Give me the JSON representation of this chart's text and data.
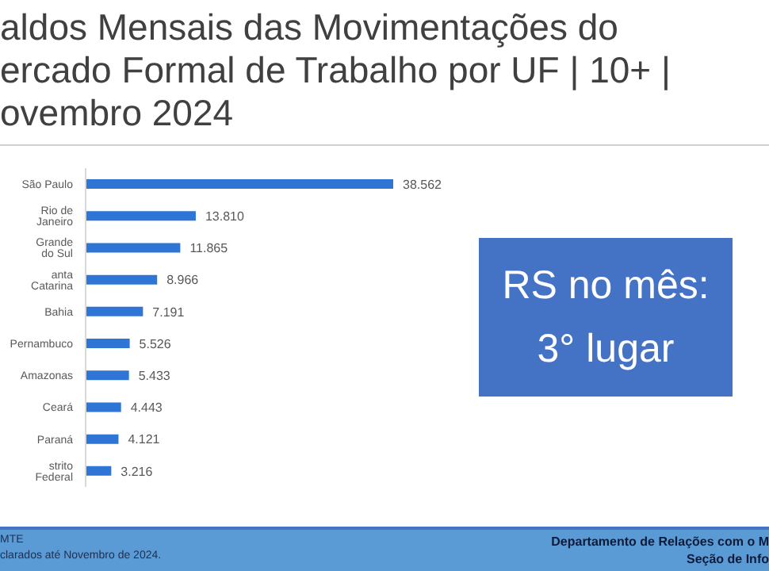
{
  "chart_data": {
    "type": "bar",
    "orientation": "horizontal",
    "title": "aldos Mensais das Movimentações do\nercado Formal de Trabalho por UF | 10+ |\novembro 2024",
    "categories": [
      "São Paulo",
      "Rio de Janeiro",
      "Grande do Sul",
      "anta Catarina",
      "Bahia",
      "Pernambuco",
      "Amazonas",
      "Ceará",
      "Paraná",
      "strito Federal"
    ],
    "values": [
      38562,
      13810,
      11865,
      8966,
      7191,
      5526,
      5433,
      4443,
      4121,
      3216
    ],
    "value_labels": [
      "38.562",
      "13.810",
      "11.865",
      "8.966",
      "7.191",
      "5.526",
      "5.433",
      "4.443",
      "4.121",
      "3.216"
    ],
    "color": "#2e75d6",
    "annotations": [
      "RS no mês:\n3° lugar",
      "MTE",
      "clarados até Novembro de 2024.",
      "Departamento de Relações com o M",
      "Seção de Info"
    ]
  }
}
